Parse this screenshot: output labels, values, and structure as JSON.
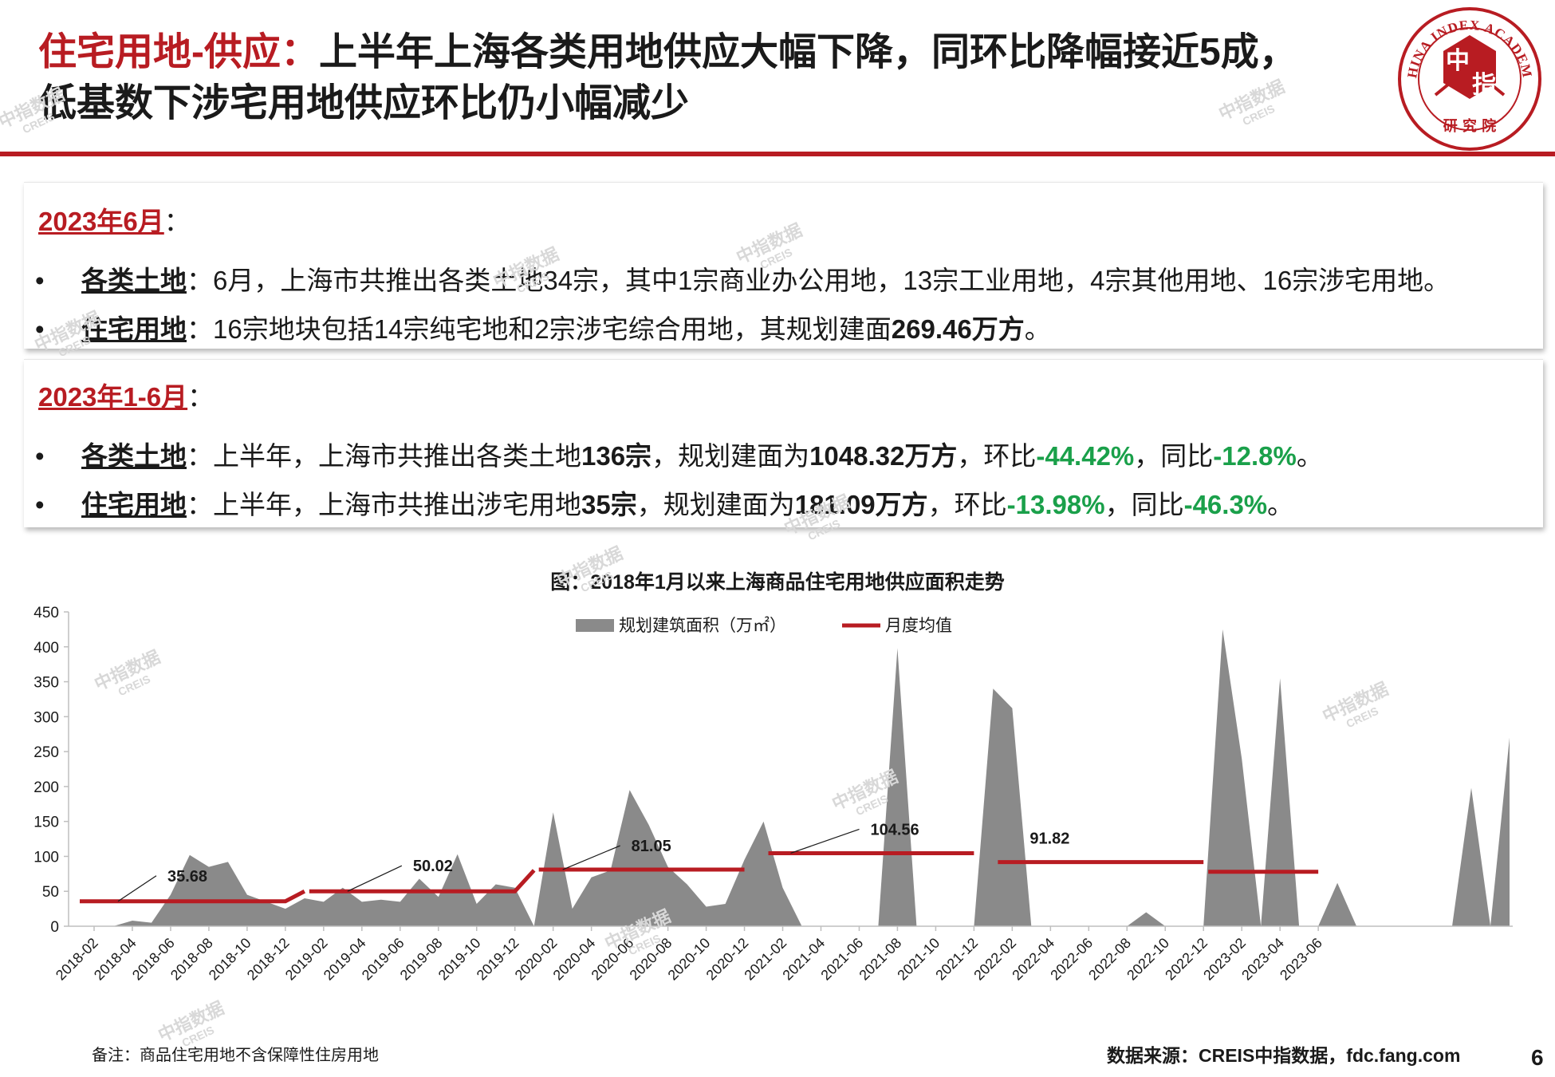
{
  "header": {
    "title_highlight": "住宅用地-供应：",
    "title_rest": "上半年上海各类用地供应大幅下降，同环比降幅接近5成，",
    "title_line2": "低基数下涉宅用地供应环比仍小幅减少",
    "logo_text_top": "CHINA INDEX ACADEMY",
    "logo_center_1": "中",
    "logo_center_2": "指",
    "logo_text_bottom": "研 究 院"
  },
  "colors": {
    "brand_red": "#b81c22",
    "positive_green": "#1aa04a",
    "area_gray": "#8a8a8a"
  },
  "watermark": {
    "cn": "中指数据",
    "en": "CREIS"
  },
  "panel_june": {
    "heading": "2023年6月",
    "colon": "：",
    "row1": {
      "label": "各类土地",
      "text": "：6月，上海市共推出各类土地34宗，其中1宗商业办公用地，13宗工业用地，4宗其他用地、16宗涉宅用地。"
    },
    "row2": {
      "label": "住宅用地",
      "text": "：16宗地块包括14宗纯宅地和2宗涉宅综合用地，其规划建面",
      "bold": "269.46万方",
      "tail": "。"
    }
  },
  "panel_h1": {
    "heading": "2023年1-6月",
    "colon": "：",
    "row1": {
      "label": "各类土地",
      "t1": "：上半年，上海市共推出各类土地",
      "b1": "136宗",
      "t2": "，规划建面为",
      "b2": "1048.32万方",
      "t3": "，环比",
      "g1": "-44.42%",
      "t4": "，同比",
      "g2": "-12.8%",
      "t5": "。"
    },
    "row2": {
      "label": "住宅用地",
      "t1": "：上半年，上海市共推出涉宅用地",
      "b1": "35宗",
      "t2": "，规划建面为",
      "b2": "181.09万方",
      "t3": "，环比",
      "g1": "-13.98%",
      "t4": "，同比",
      "g2": "-46.3%",
      "t5": "。"
    }
  },
  "chart_data": {
    "type": "area",
    "title": "图：2018年1月以来上海商品住宅用地供应面积走势",
    "ylim": [
      0,
      450
    ],
    "yticks": [
      0,
      50,
      100,
      150,
      200,
      250,
      300,
      350,
      400,
      450
    ],
    "x_start": "2018-02",
    "x_end": "2023-06",
    "xtick_labels": [
      "2018-02",
      "2018-04",
      "2018-06",
      "2018-08",
      "2018-10",
      "2018-12",
      "2019-02",
      "2019-04",
      "2019-06",
      "2019-08",
      "2019-10",
      "2019-12",
      "2020-02",
      "2020-04",
      "2020-06",
      "2020-08",
      "2020-10",
      "2020-12",
      "2021-02",
      "2021-04",
      "2021-06",
      "2021-08",
      "2021-10",
      "2021-12",
      "2022-02",
      "2022-04",
      "2022-06",
      "2022-08",
      "2022-10",
      "2022-12",
      "2023-02",
      "2023-04",
      "2023-06"
    ],
    "legend": {
      "area": "规划建筑面积（万㎡）",
      "line": "月度均值",
      "position": "top-center"
    },
    "area_series": {
      "name": "规划建筑面积（万㎡）",
      "values": [
        0,
        0,
        8,
        5,
        45,
        102,
        85,
        92,
        45,
        35,
        25,
        40,
        35,
        55,
        35,
        38,
        35,
        68,
        42,
        103,
        32,
        60,
        55,
        0,
        163,
        25,
        70,
        80,
        195,
        145,
        85,
        60,
        28,
        32,
        95,
        150,
        55,
        0,
        0,
        0,
        0,
        0,
        398,
        0,
        0,
        0,
        0,
        340,
        312,
        0,
        0,
        0,
        0,
        0,
        0,
        20,
        0,
        0,
        0,
        425,
        240,
        0,
        355,
        0,
        0,
        62,
        0,
        0,
        0,
        0,
        0,
        0,
        198,
        0,
        270
      ]
    },
    "mean_line": {
      "name": "月度均值",
      "segments": [
        {
          "start": "2018-02",
          "end": "2018-12",
          "value": 35.68,
          "tail_to": 50
        },
        {
          "start": "2019-02",
          "end": "2019-12",
          "value": 50.02,
          "tail_to": 80
        },
        {
          "start": "2020-02",
          "end": "2020-12",
          "value": 81.05
        },
        {
          "start": "2021-02",
          "end": "2021-12",
          "value": 104.56
        },
        {
          "start": "2022-02",
          "end": "2022-12",
          "value": 91.82
        },
        {
          "start": "2023-01",
          "end": "2023-06",
          "value": 78
        }
      ]
    },
    "mean_labels": [
      "35.68",
      "50.02",
      "81.05",
      "104.56",
      "91.82"
    ]
  },
  "footer": {
    "note": "备注：商品住宅用地不含保障性住房用地",
    "source": "数据来源：CREIS中指数据，fdc.fang.com",
    "page": "6"
  }
}
